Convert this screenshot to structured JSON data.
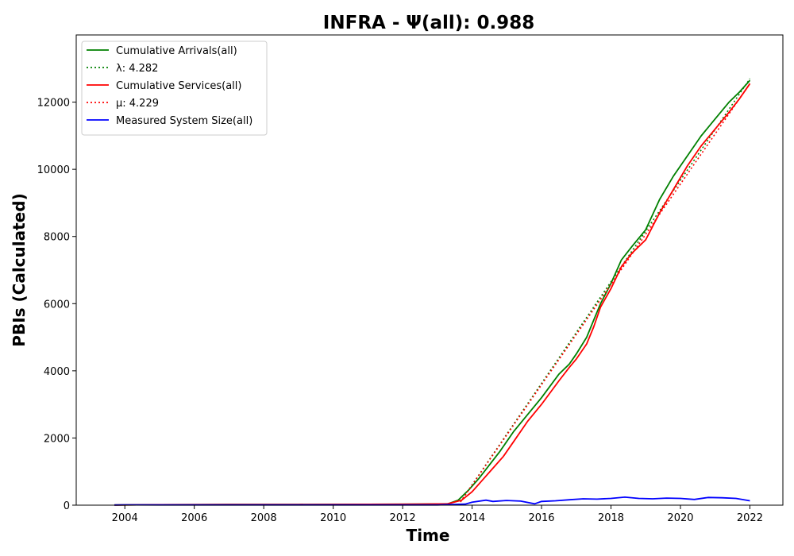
{
  "chart_data": {
    "type": "line",
    "title": "INFRA -  Ψ(all): 0.988",
    "xlabel": "Time",
    "ylabel": "PBIs (Calculated)",
    "xlim": [
      2002.6,
      2022.95
    ],
    "ylim": [
      0,
      14000
    ],
    "xticks": [
      2004,
      2006,
      2008,
      2010,
      2012,
      2014,
      2016,
      2018,
      2020,
      2022
    ],
    "yticks": [
      0,
      2000,
      4000,
      6000,
      8000,
      10000,
      12000
    ],
    "grid": false,
    "legend_position": "top-left",
    "series": [
      {
        "name": "Cumulative Arrivals(all)",
        "color": "#008000",
        "style": "solid",
        "x": [
          2003.7,
          2005.0,
          2007.0,
          2009.0,
          2011.0,
          2012.5,
          2013.3,
          2013.6,
          2013.9,
          2014.2,
          2014.5,
          2014.8,
          2015.2,
          2015.6,
          2016.0,
          2016.5,
          2016.8,
          2017.0,
          2017.3,
          2017.5,
          2017.7,
          2018.0,
          2018.3,
          2018.6,
          2019.0,
          2019.4,
          2019.8,
          2020.2,
          2020.6,
          2021.0,
          2021.4,
          2021.7,
          2022.0
        ],
        "y": [
          5,
          15,
          20,
          22,
          25,
          30,
          40,
          150,
          450,
          800,
          1200,
          1600,
          2200,
          2700,
          3200,
          3900,
          4200,
          4500,
          5000,
          5500,
          6000,
          6600,
          7300,
          7700,
          8200,
          9100,
          9800,
          10400,
          11000,
          11500,
          12000,
          12300,
          12650
        ]
      },
      {
        "name": "λ: 4.282",
        "color": "#008000",
        "style": "dotted",
        "x": [
          2013.6,
          2022.0
        ],
        "y": [
          0,
          12700
        ]
      },
      {
        "name": "Cumulative Services(all)",
        "color": "#ff0000",
        "style": "solid",
        "x": [
          2003.7,
          2005.0,
          2007.0,
          2009.0,
          2011.0,
          2012.5,
          2013.3,
          2013.7,
          2014.0,
          2014.3,
          2014.6,
          2014.9,
          2015.2,
          2015.6,
          2016.0,
          2016.5,
          2016.8,
          2017.0,
          2017.3,
          2017.5,
          2017.7,
          2018.0,
          2018.3,
          2018.6,
          2019.0,
          2019.4,
          2019.8,
          2020.2,
          2020.6,
          2021.0,
          2021.4,
          2021.7,
          2022.0
        ],
        "y": [
          5,
          15,
          20,
          22,
          25,
          30,
          40,
          150,
          400,
          750,
          1100,
          1450,
          1900,
          2500,
          3000,
          3700,
          4100,
          4350,
          4800,
          5300,
          5900,
          6450,
          7100,
          7500,
          7900,
          8700,
          9400,
          10100,
          10700,
          11200,
          11700,
          12100,
          12550
        ]
      },
      {
        "name": "μ: 4.229",
        "color": "#ff0000",
        "style": "dotted",
        "x": [
          2013.6,
          2022.0
        ],
        "y": [
          0,
          12550
        ]
      },
      {
        "name": "Measured System Size(all)",
        "color": "#0000ff",
        "style": "solid",
        "x": [
          2003.7,
          2004.0,
          2005.0,
          2007.0,
          2009.0,
          2011.0,
          2013.0,
          2013.8,
          2014.0,
          2014.4,
          2014.6,
          2015.0,
          2015.4,
          2015.8,
          2016.0,
          2016.4,
          2016.8,
          2017.2,
          2017.6,
          2018.0,
          2018.4,
          2018.8,
          2019.2,
          2019.6,
          2020.0,
          2020.4,
          2020.8,
          2021.2,
          2021.6,
          2022.0
        ],
        "y": [
          5,
          10,
          8,
          8,
          8,
          8,
          8,
          30,
          90,
          150,
          110,
          140,
          120,
          40,
          110,
          130,
          160,
          190,
          180,
          200,
          240,
          200,
          190,
          210,
          200,
          170,
          230,
          220,
          200,
          130
        ]
      }
    ]
  }
}
